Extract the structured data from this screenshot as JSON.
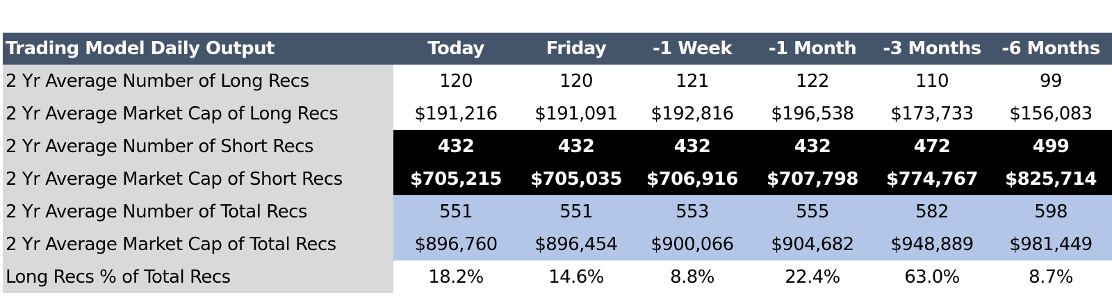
{
  "table": {
    "headers": [
      "Trading Model Daily Output",
      "Today",
      "Friday",
      "-1 Week",
      "-1 Month",
      "-3 Months",
      "-6 Months"
    ],
    "rows": [
      {
        "group": "long",
        "label": "2 Yr Average Number of Long Recs",
        "values": [
          "120",
          "120",
          "121",
          "122",
          "110",
          "99"
        ]
      },
      {
        "group": "long",
        "label": "2 Yr Average Market Cap of Long Recs",
        "values": [
          "$191,216",
          "$191,091",
          "$192,816",
          "$196,538",
          "$173,733",
          "$156,083"
        ]
      },
      {
        "group": "short",
        "label": "2 Yr Average Number of Short Recs",
        "values": [
          "432",
          "432",
          "432",
          "432",
          "472",
          "499"
        ]
      },
      {
        "group": "short",
        "label": "2 Yr Average Market Cap of Short Recs",
        "values": [
          "$705,215",
          "$705,035",
          "$706,916",
          "$707,798",
          "$774,767",
          "$825,714"
        ]
      },
      {
        "group": "total",
        "label": "2 Yr Average Number of Total Recs",
        "values": [
          "551",
          "551",
          "553",
          "555",
          "582",
          "598"
        ]
      },
      {
        "group": "total",
        "label": "2 Yr Average Market Cap of Total Recs",
        "values": [
          "$896,760",
          "$896,454",
          "$900,066",
          "$904,682",
          "$948,889",
          "$981,449"
        ]
      },
      {
        "group": "pct",
        "label": "Long Recs % of Total Recs",
        "values": [
          "18.2%",
          "14.6%",
          "8.8%",
          "22.4%",
          "63.0%",
          "8.7%"
        ]
      }
    ]
  },
  "colors": {
    "header_bg": "#44546a",
    "label_bg": "#d9d9d9",
    "short_bg": "#000000",
    "total_bg": "#b4c6e7"
  }
}
